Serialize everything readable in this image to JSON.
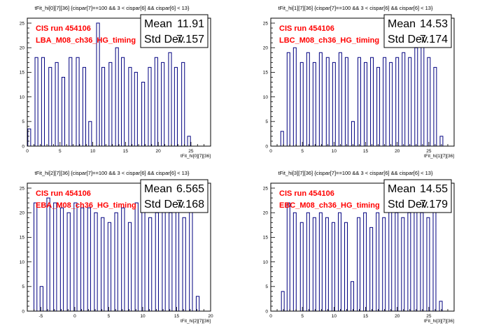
{
  "chart_data": [
    {
      "type": "histogram",
      "title": "tFit_hi[0][7][36] {cispar[7]==100 && 3 < cispar[6] && cispar[6] < 13}",
      "xlabel": "tFit_hi[0][7][36]",
      "xlim": [
        0,
        28
      ],
      "ylim": [
        0,
        26
      ],
      "xticks": [
        0,
        5,
        10,
        15,
        20,
        25
      ],
      "yticks": [
        0,
        5,
        10,
        15,
        20,
        25
      ],
      "labels": [
        "CIS run 454106",
        "LBA_M08_ch36_HG_timing"
      ],
      "stats": {
        "mean_label": "Mean",
        "mean": "11.91",
        "std_label": "Std Dev",
        "std": "7.157"
      },
      "peaks": [
        {
          "x": 0.3,
          "h": 3.5
        },
        {
          "x": 1.4,
          "h": 18
        },
        {
          "x": 2.4,
          "h": 18
        },
        {
          "x": 3.5,
          "h": 16
        },
        {
          "x": 4.5,
          "h": 17
        },
        {
          "x": 5.5,
          "h": 14
        },
        {
          "x": 6.6,
          "h": 18
        },
        {
          "x": 7.7,
          "h": 18
        },
        {
          "x": 8.7,
          "h": 16
        },
        {
          "x": 9.6,
          "h": 5
        },
        {
          "x": 10.8,
          "h": 25
        },
        {
          "x": 11.6,
          "h": 16
        },
        {
          "x": 12.7,
          "h": 17
        },
        {
          "x": 13.7,
          "h": 20
        },
        {
          "x": 14.6,
          "h": 18
        },
        {
          "x": 15.7,
          "h": 16
        },
        {
          "x": 16.6,
          "h": 15
        },
        {
          "x": 17.7,
          "h": 13
        },
        {
          "x": 18.7,
          "h": 16
        },
        {
          "x": 19.7,
          "h": 18
        },
        {
          "x": 20.7,
          "h": 17
        },
        {
          "x": 21.8,
          "h": 19
        },
        {
          "x": 22.7,
          "h": 16
        },
        {
          "x": 23.8,
          "h": 17
        },
        {
          "x": 24.7,
          "h": 2
        }
      ]
    },
    {
      "type": "histogram",
      "title": "tFit_hi[1][7][36] {cispar[7]==100 && 3 < cispar[6] && cispar[6] < 13}",
      "xlabel": "tFit_hi[1][7][36]",
      "xlim": [
        0,
        29
      ],
      "ylim": [
        0,
        26
      ],
      "xticks": [
        0,
        5,
        10,
        15,
        20,
        25
      ],
      "yticks": [
        0,
        5,
        10,
        15,
        20,
        25
      ],
      "labels": [
        "CIS run 454106",
        "LBC_M08_ch36_HG_timing"
      ],
      "stats": {
        "mean_label": "Mean",
        "mean": "14.53",
        "std_label": "Std Dev",
        "std": "7.174"
      },
      "peaks": [
        {
          "x": 1.8,
          "h": 3
        },
        {
          "x": 2.8,
          "h": 19
        },
        {
          "x": 3.8,
          "h": 20
        },
        {
          "x": 4.9,
          "h": 17
        },
        {
          "x": 5.9,
          "h": 19
        },
        {
          "x": 6.9,
          "h": 17
        },
        {
          "x": 7.9,
          "h": 19
        },
        {
          "x": 9.0,
          "h": 18
        },
        {
          "x": 10.0,
          "h": 17
        },
        {
          "x": 11.0,
          "h": 19
        },
        {
          "x": 12.0,
          "h": 18
        },
        {
          "x": 13.0,
          "h": 5
        },
        {
          "x": 14.0,
          "h": 18
        },
        {
          "x": 15.0,
          "h": 17
        },
        {
          "x": 16.0,
          "h": 18
        },
        {
          "x": 17.0,
          "h": 16
        },
        {
          "x": 18.0,
          "h": 18
        },
        {
          "x": 19.0,
          "h": 17
        },
        {
          "x": 20.0,
          "h": 18
        },
        {
          "x": 21.0,
          "h": 19
        },
        {
          "x": 22.0,
          "h": 18
        },
        {
          "x": 23.0,
          "h": 20
        },
        {
          "x": 24.0,
          "h": 21
        },
        {
          "x": 25.0,
          "h": 18
        },
        {
          "x": 26.0,
          "h": 16
        },
        {
          "x": 27.0,
          "h": 2
        }
      ]
    },
    {
      "type": "histogram",
      "title": "tFit_hi[2][7][36] {cispar[7]==100 && 3 < cispar[6] && cispar[6] < 13}",
      "xlabel": "tFit_hi[2][7][36]",
      "xlim": [
        -7,
        20
      ],
      "ylim": [
        0,
        26
      ],
      "xticks": [
        -5,
        0,
        5,
        10,
        15,
        20
      ],
      "yticks": [
        0,
        5,
        10,
        15,
        20,
        25
      ],
      "labels": [
        "CIS run 454106",
        "EBA_M08_ch36_HG_timing"
      ],
      "stats": {
        "mean_label": "Mean",
        "mean": "6.565",
        "std_label": "Std Dev",
        "std": "7.168"
      },
      "peaks": [
        {
          "x": -5.8,
          "h": 22
        },
        {
          "x": -4.9,
          "h": 5
        },
        {
          "x": -3.9,
          "h": 23
        },
        {
          "x": -2.9,
          "h": 22
        },
        {
          "x": -1.9,
          "h": 21
        },
        {
          "x": -0.9,
          "h": 20
        },
        {
          "x": 0.1,
          "h": 22
        },
        {
          "x": 1.1,
          "h": 21
        },
        {
          "x": 2.1,
          "h": 21
        },
        {
          "x": 3.1,
          "h": 20
        },
        {
          "x": 4.1,
          "h": 19
        },
        {
          "x": 5.1,
          "h": 18
        },
        {
          "x": 6.1,
          "h": 20
        },
        {
          "x": 7.1,
          "h": 21
        },
        {
          "x": 8.1,
          "h": 18
        },
        {
          "x": 9.1,
          "h": 22
        },
        {
          "x": 10.1,
          "h": 21
        },
        {
          "x": 11.1,
          "h": 19
        },
        {
          "x": 12.1,
          "h": 20
        },
        {
          "x": 13.1,
          "h": 21
        },
        {
          "x": 14.1,
          "h": 20
        },
        {
          "x": 15.1,
          "h": 23
        },
        {
          "x": 16.1,
          "h": 19
        },
        {
          "x": 17.1,
          "h": 24
        },
        {
          "x": 18.1,
          "h": 3
        }
      ]
    },
    {
      "type": "histogram",
      "title": "tFit_hi[3][7][36] {cispar[7]==100 && 3 < cispar[6] && cispar[6] < 13}",
      "xlabel": "tFit_hi[3][7][36]",
      "xlim": [
        0,
        29
      ],
      "ylim": [
        0,
        26
      ],
      "xticks": [
        0,
        5,
        10,
        15,
        20,
        25
      ],
      "yticks": [
        0,
        5,
        10,
        15,
        20,
        25
      ],
      "labels": [
        "CIS run 454106",
        "EBC_M08_ch36_HG_timing"
      ],
      "stats": {
        "mean_label": "Mean",
        "mean": "14.55",
        "std_label": "Std Dev",
        "std": "7.179"
      },
      "peaks": [
        {
          "x": 1.9,
          "h": 4
        },
        {
          "x": 2.8,
          "h": 22
        },
        {
          "x": 3.8,
          "h": 20
        },
        {
          "x": 4.9,
          "h": 18
        },
        {
          "x": 5.9,
          "h": 20
        },
        {
          "x": 6.9,
          "h": 19
        },
        {
          "x": 7.9,
          "h": 20
        },
        {
          "x": 8.9,
          "h": 19
        },
        {
          "x": 9.9,
          "h": 18
        },
        {
          "x": 10.9,
          "h": 20
        },
        {
          "x": 11.9,
          "h": 18
        },
        {
          "x": 12.9,
          "h": 6
        },
        {
          "x": 13.9,
          "h": 19
        },
        {
          "x": 14.9,
          "h": 20
        },
        {
          "x": 15.9,
          "h": 17
        },
        {
          "x": 16.9,
          "h": 20
        },
        {
          "x": 17.9,
          "h": 19
        },
        {
          "x": 18.9,
          "h": 21
        },
        {
          "x": 19.9,
          "h": 20
        },
        {
          "x": 20.9,
          "h": 19
        },
        {
          "x": 21.9,
          "h": 20
        },
        {
          "x": 22.9,
          "h": 21
        },
        {
          "x": 23.9,
          "h": 20
        },
        {
          "x": 24.9,
          "h": 19
        },
        {
          "x": 25.9,
          "h": 24
        },
        {
          "x": 26.9,
          "h": 2
        }
      ]
    }
  ],
  "colors": {
    "line": "#000080",
    "label": "#ff0000",
    "frame": "#000000"
  }
}
